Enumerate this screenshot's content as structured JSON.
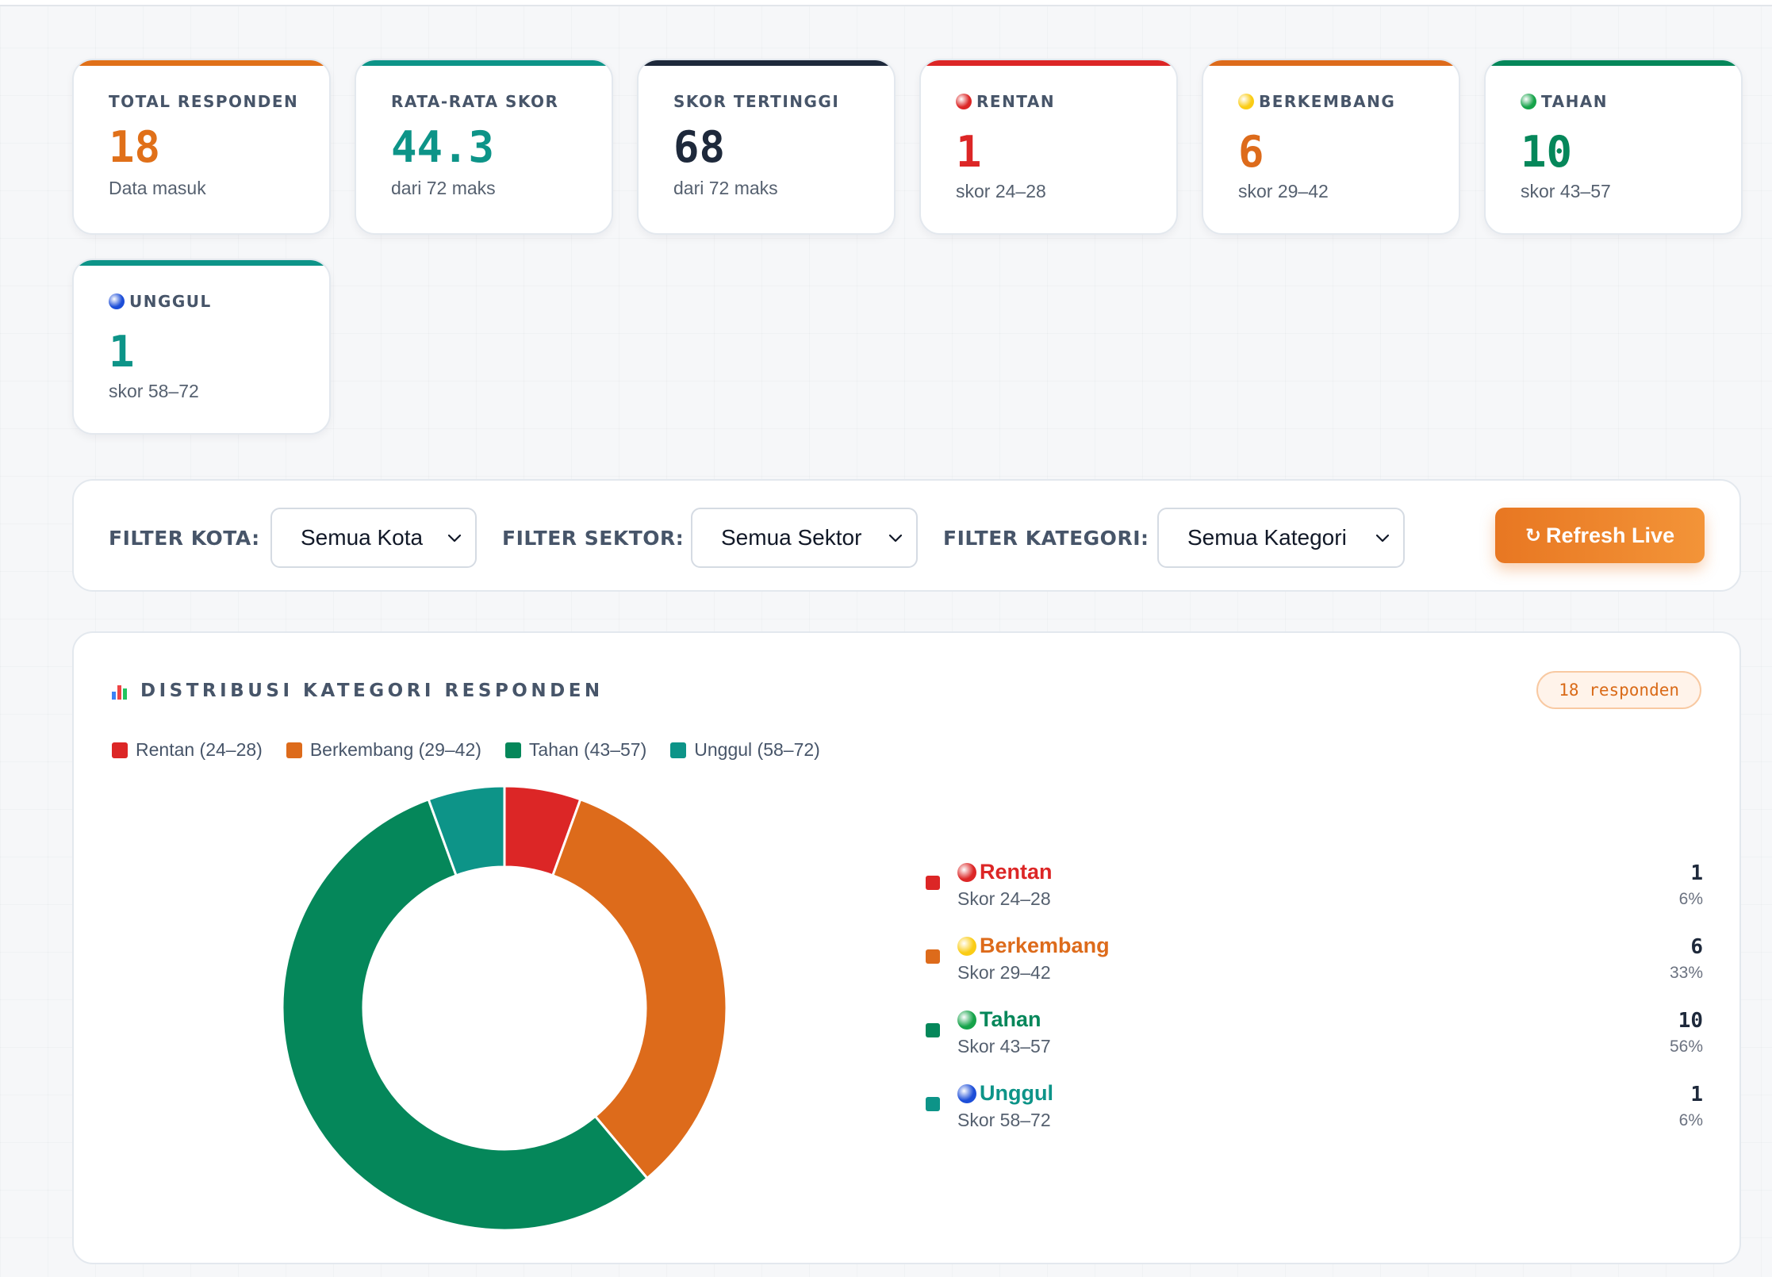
{
  "stats": [
    {
      "label": "TOTAL RESPONDEN",
      "value": "18",
      "sub": "Data masuk",
      "color": "#e07019",
      "dot": null
    },
    {
      "label": "RATA-RATA SKOR",
      "value": "44.3",
      "sub": "dari 72 maks",
      "color": "#0d9488",
      "dot": null
    },
    {
      "label": "SKOR TERTINGGI",
      "value": "68",
      "sub": "dari 72 maks",
      "color": "#1e293b",
      "dot": null
    },
    {
      "label": "RENTAN",
      "value": "1",
      "sub": "skor 24–28",
      "color": "#dc2626",
      "dot": "#dc2626"
    },
    {
      "label": "BERKEMBANG",
      "value": "6",
      "sub": "skor 29–42",
      "color": "#dd6b1b",
      "dot": "#facc15"
    },
    {
      "label": "TAHAN",
      "value": "10",
      "sub": "skor 43–57",
      "color": "#05875a",
      "dot": "#16a34a"
    },
    {
      "label": "UNGGUL",
      "value": "1",
      "sub": "skor 58–72",
      "color": "#0d9488",
      "dot": "#1d4ed8"
    }
  ],
  "filters": {
    "kota_label": "FILTER KOTA:",
    "kota_value": "Semua Kota",
    "sektor_label": "FILTER SEKTOR:",
    "sektor_value": "Semua Sektor",
    "kategori_label": "FILTER KATEGORI:",
    "kategori_value": "Semua Kategori",
    "refresh_label": "Refresh Live",
    "refresh_icon": "↻"
  },
  "chart_panel": {
    "title": "DISTRIBUSI KATEGORI RESPONDEN",
    "badge": "18 responden"
  },
  "chart_data": {
    "type": "pie",
    "donut": true,
    "categories": [
      "Rentan (24–28)",
      "Berkembang (29–42)",
      "Tahan (43–57)",
      "Unggul (58–72)"
    ],
    "values": [
      1,
      6,
      10,
      1
    ],
    "colors": [
      "#dc2626",
      "#dd6b1b",
      "#05875a",
      "#0d9488"
    ],
    "legend_position": "top-left"
  },
  "categories": [
    {
      "name": "Rentan",
      "range": "Skor 24–28",
      "count": "1",
      "pct": "6%",
      "color": "#dc2626",
      "dot": "#dc2626"
    },
    {
      "name": "Berkembang",
      "range": "Skor 29–42",
      "count": "6",
      "pct": "33%",
      "color": "#dd6b1b",
      "dot": "#facc15"
    },
    {
      "name": "Tahan",
      "range": "Skor 43–57",
      "count": "10",
      "pct": "56%",
      "color": "#05875a",
      "dot": "#16a34a"
    },
    {
      "name": "Unggul",
      "range": "Skor 58–72",
      "count": "1",
      "pct": "6%",
      "color": "#0d9488",
      "dot": "#1d4ed8"
    }
  ]
}
